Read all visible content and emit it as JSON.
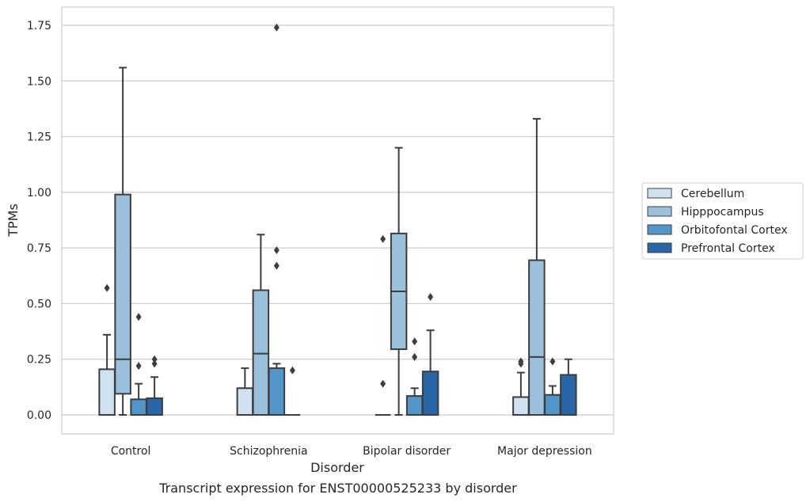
{
  "chart_data": {
    "type": "box",
    "xlabel": "Disorder",
    "ylabel": "TPMs",
    "caption": "Transcript expression for ENST00000525233 by disorder",
    "ylim": [
      -0.085,
      1.83
    ],
    "yticks": [
      "0.00",
      "0.25",
      "0.50",
      "0.75",
      "1.00",
      "1.25",
      "1.50",
      "1.75"
    ],
    "grid": "horizontal",
    "legend_position": "right",
    "categories": [
      "Control",
      "Schizophrenia",
      "Bipolar disorder",
      "Major depression"
    ],
    "series": [
      {
        "name": "Cerebellum",
        "color": "#d0e1f2",
        "boxes": [
          {
            "whisker_low": 0.0,
            "q1": 0.0,
            "median": 0.0,
            "q3": 0.205,
            "whisker_high": 0.36,
            "outliers": [
              0.57
            ]
          },
          {
            "whisker_low": 0.0,
            "q1": 0.0,
            "median": 0.0,
            "q3": 0.12,
            "whisker_high": 0.21,
            "outliers": []
          },
          {
            "whisker_low": 0.0,
            "q1": 0.0,
            "median": 0.0,
            "q3": 0.0,
            "whisker_high": 0.0,
            "outliers": [
              0.14,
              0.79
            ]
          },
          {
            "whisker_low": 0.0,
            "q1": 0.0,
            "median": 0.0,
            "q3": 0.08,
            "whisker_high": 0.19,
            "outliers": [
              0.23,
              0.24
            ]
          }
        ]
      },
      {
        "name": "Hipppocampus",
        "color": "#9ac0dc",
        "boxes": [
          {
            "whisker_low": 0.0,
            "q1": 0.095,
            "median": 0.25,
            "q3": 0.99,
            "whisker_high": 1.56,
            "outliers": []
          },
          {
            "whisker_low": 0.0,
            "q1": 0.0,
            "median": 0.275,
            "q3": 0.56,
            "whisker_high": 0.81,
            "outliers": []
          },
          {
            "whisker_low": 0.0,
            "q1": 0.295,
            "median": 0.555,
            "q3": 0.815,
            "whisker_high": 1.2,
            "outliers": []
          },
          {
            "whisker_low": 0.0,
            "q1": 0.0,
            "median": 0.26,
            "q3": 0.695,
            "whisker_high": 1.33,
            "outliers": []
          }
        ]
      },
      {
        "name": "Orbitofontal Cortex",
        "color": "#5396c9",
        "boxes": [
          {
            "whisker_low": 0.0,
            "q1": 0.0,
            "median": 0.0,
            "q3": 0.07,
            "whisker_high": 0.14,
            "outliers": [
              0.22,
              0.44
            ]
          },
          {
            "whisker_low": 0.0,
            "q1": 0.0,
            "median": 0.0,
            "q3": 0.21,
            "whisker_high": 0.23,
            "outliers": [
              0.67,
              0.74,
              1.74
            ]
          },
          {
            "whisker_low": 0.0,
            "q1": 0.0,
            "median": 0.0,
            "q3": 0.085,
            "whisker_high": 0.12,
            "outliers": [
              0.26,
              0.33
            ]
          },
          {
            "whisker_low": 0.0,
            "q1": 0.0,
            "median": 0.0,
            "q3": 0.09,
            "whisker_high": 0.13,
            "outliers": [
              0.24
            ]
          }
        ]
      },
      {
        "name": "Prefrontal Cortex",
        "color": "#2866a8",
        "boxes": [
          {
            "whisker_low": 0.0,
            "q1": 0.0,
            "median": 0.0,
            "q3": 0.075,
            "whisker_high": 0.17,
            "outliers": [
              0.23,
              0.25
            ]
          },
          {
            "whisker_low": 0.0,
            "q1": 0.0,
            "median": 0.0,
            "q3": 0.0,
            "whisker_high": 0.0,
            "outliers": [
              0.2
            ]
          },
          {
            "whisker_low": 0.0,
            "q1": 0.0,
            "median": 0.0,
            "q3": 0.195,
            "whisker_high": 0.38,
            "outliers": [
              0.53
            ]
          },
          {
            "whisker_low": 0.0,
            "q1": 0.0,
            "median": 0.0,
            "q3": 0.18,
            "whisker_high": 0.25,
            "outliers": []
          }
        ]
      }
    ]
  }
}
